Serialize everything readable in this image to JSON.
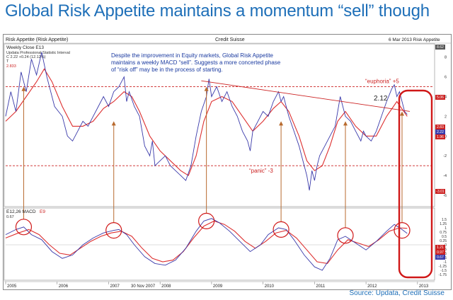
{
  "slide": {
    "title": "Global Risk Appetite maintains a momentum “sell” though",
    "source": "Source: Updata, Credit Suisse"
  },
  "chart_header": {
    "left": "Risk Appetite (Risk Appetite)",
    "center": "Credit Suisse",
    "right": "6 Mar 2013  Risk Appetite"
  },
  "colors": {
    "weekly_line": "#3a3aaa",
    "moving_average": "#dd3030",
    "threshold": "#cc2222",
    "annotation_arrow": "#b86a2e",
    "highlight_box": "#d01818",
    "title": "#1e6fb8"
  },
  "chart_data": [
    {
      "type": "line",
      "panel": "Risk Appetite weekly close",
      "legend_text": "Weekly Close  E13",
      "info_lines": [
        "Updata Professional  Statistic Interval",
        "C 2.22  +0.24 (12.12%)",
        "T"
      ],
      "info_value": "2.833",
      "annotation": "Despite the improvement in Equity markets, Global Risk Appetite maintains a weekly MACD “sell”.  Suggests a more concerted phase of “risk off” may be in the process of starting.",
      "x_range": [
        2005.0,
        2013.25
      ],
      "ylim": [
        -7,
        9.2
      ],
      "y_ticks": [
        8,
        6,
        4,
        2,
        0,
        -2,
        -4,
        -6
      ],
      "euphoria_level": 5,
      "euphoria_label": "“euphoria” +5",
      "panic_level": -3,
      "panic_label": "“panic” -3",
      "trendline_label": "2.12",
      "trendline": [
        [
          2008.8,
          5.6
        ],
        [
          2012.85,
          2.5
        ]
      ],
      "right_badges": [
        "8.62",
        "5.06",
        "2.83",
        "2.22",
        "1.96",
        "-3.01"
      ],
      "series": [
        {
          "name": "Weekly Close",
          "points": [
            [
              2005.0,
              2.0
            ],
            [
              2005.1,
              4.5
            ],
            [
              2005.2,
              2.5
            ],
            [
              2005.3,
              6.5
            ],
            [
              2005.4,
              4.5
            ],
            [
              2005.5,
              7.8
            ],
            [
              2005.6,
              6.2
            ],
            [
              2005.7,
              8.5
            ],
            [
              2005.8,
              6.0
            ],
            [
              2005.95,
              3.0
            ],
            [
              2006.1,
              2.0
            ],
            [
              2006.2,
              0.0
            ],
            [
              2006.3,
              -0.5
            ],
            [
              2006.4,
              0.5
            ],
            [
              2006.5,
              1.5
            ],
            [
              2006.6,
              1.0
            ],
            [
              2006.7,
              2.0
            ],
            [
              2006.8,
              3.0
            ],
            [
              2006.9,
              4.0
            ],
            [
              2007.0,
              3.0
            ],
            [
              2007.1,
              4.5
            ],
            [
              2007.2,
              5.0
            ],
            [
              2007.3,
              6.0
            ],
            [
              2007.35,
              3.5
            ],
            [
              2007.4,
              4.5
            ],
            [
              2007.5,
              3.0
            ],
            [
              2007.6,
              2.0
            ],
            [
              2007.7,
              -1.0
            ],
            [
              2007.8,
              -2.0
            ],
            [
              2007.85,
              -0.5
            ],
            [
              2007.9,
              -3.0
            ],
            [
              2008.0,
              -2.5
            ],
            [
              2008.1,
              -2.0
            ],
            [
              2008.2,
              -3.0
            ],
            [
              2008.3,
              -3.5
            ],
            [
              2008.4,
              -4.0
            ],
            [
              2008.5,
              -4.5
            ],
            [
              2008.6,
              -3.0
            ],
            [
              2008.7,
              0.0
            ],
            [
              2008.8,
              2.5
            ],
            [
              2008.9,
              4.0
            ],
            [
              2008.95,
              5.8
            ],
            [
              2009.0,
              4.0
            ],
            [
              2009.1,
              5.0
            ],
            [
              2009.2,
              3.5
            ],
            [
              2009.3,
              4.5
            ],
            [
              2009.4,
              3.0
            ],
            [
              2009.5,
              2.0
            ],
            [
              2009.6,
              0.5
            ],
            [
              2009.7,
              -0.5
            ],
            [
              2009.75,
              -1.5
            ],
            [
              2009.8,
              0.5
            ],
            [
              2009.9,
              1.5
            ],
            [
              2010.0,
              2.5
            ],
            [
              2010.1,
              2.0
            ],
            [
              2010.2,
              3.5
            ],
            [
              2010.3,
              4.5
            ],
            [
              2010.35,
              3.5
            ],
            [
              2010.4,
              4.0
            ],
            [
              2010.5,
              2.0
            ],
            [
              2010.6,
              0.5
            ],
            [
              2010.7,
              -1.0
            ],
            [
              2010.8,
              -3.0
            ],
            [
              2010.85,
              -4.0
            ],
            [
              2010.9,
              -5.5
            ],
            [
              2010.95,
              -3.5
            ],
            [
              2011.0,
              -4.5
            ],
            [
              2011.05,
              -3.0
            ],
            [
              2011.1,
              -2.0
            ],
            [
              2011.2,
              -1.0
            ],
            [
              2011.3,
              0.0
            ],
            [
              2011.4,
              1.0
            ],
            [
              2011.45,
              2.5
            ],
            [
              2011.5,
              4.0
            ],
            [
              2011.6,
              2.0
            ],
            [
              2011.7,
              1.5
            ],
            [
              2011.8,
              0.5
            ],
            [
              2011.9,
              -0.5
            ],
            [
              2011.95,
              0.5
            ],
            [
              2012.0,
              0.0
            ],
            [
              2012.1,
              -0.5
            ],
            [
              2012.2,
              0.5
            ],
            [
              2012.3,
              2.0
            ],
            [
              2012.4,
              3.5
            ],
            [
              2012.5,
              4.8
            ],
            [
              2012.55,
              5.2
            ],
            [
              2012.6,
              4.0
            ],
            [
              2012.65,
              4.5
            ],
            [
              2012.7,
              3.5
            ],
            [
              2012.75,
              2.5
            ],
            [
              2012.8,
              2.2
            ]
          ]
        },
        {
          "name": "E13",
          "points": [
            [
              2005.0,
              1.5
            ],
            [
              2005.2,
              2.5
            ],
            [
              2005.4,
              4.0
            ],
            [
              2005.6,
              5.5
            ],
            [
              2005.75,
              6.8
            ],
            [
              2005.9,
              5.5
            ],
            [
              2006.1,
              3.0
            ],
            [
              2006.3,
              1.0
            ],
            [
              2006.5,
              1.0
            ],
            [
              2006.7,
              1.5
            ],
            [
              2006.9,
              2.8
            ],
            [
              2007.1,
              3.5
            ],
            [
              2007.3,
              4.5
            ],
            [
              2007.45,
              4.0
            ],
            [
              2007.6,
              2.5
            ],
            [
              2007.8,
              0.0
            ],
            [
              2008.0,
              -1.5
            ],
            [
              2008.2,
              -2.5
            ],
            [
              2008.4,
              -3.5
            ],
            [
              2008.55,
              -4.0
            ],
            [
              2008.7,
              -2.0
            ],
            [
              2008.85,
              1.5
            ],
            [
              2009.0,
              3.5
            ],
            [
              2009.2,
              4.0
            ],
            [
              2009.4,
              3.5
            ],
            [
              2009.6,
              2.0
            ],
            [
              2009.8,
              0.5
            ],
            [
              2010.0,
              1.5
            ],
            [
              2010.2,
              2.8
            ],
            [
              2010.35,
              3.5
            ],
            [
              2010.5,
              2.5
            ],
            [
              2010.7,
              0.0
            ],
            [
              2010.85,
              -2.5
            ],
            [
              2011.0,
              -3.5
            ],
            [
              2011.15,
              -3.0
            ],
            [
              2011.3,
              -1.0
            ],
            [
              2011.45,
              1.5
            ],
            [
              2011.6,
              2.5
            ],
            [
              2011.8,
              1.0
            ],
            [
              2012.0,
              0.0
            ],
            [
              2012.2,
              0.0
            ],
            [
              2012.4,
              2.0
            ],
            [
              2012.6,
              3.5
            ],
            [
              2012.8,
              2.0
            ]
          ]
        }
      ]
    },
    {
      "type": "line",
      "panel": "MACD",
      "legend_text": "E12,26 MACD",
      "legend_signal": "E9",
      "info_value": "0.67",
      "ylim": [
        -2.0,
        2.0
      ],
      "y_ticks": [
        "1.5",
        "1.25",
        "1",
        "0.75",
        "0.5",
        "0.25",
        "0",
        "-0.25",
        "-0.5",
        "-0.75",
        "-1",
        "-1.25",
        "-1.5",
        "-1.75"
      ],
      "right_badges": [
        "1.21",
        "0.97",
        "0.67"
      ],
      "x_ticks": [
        "2005",
        "2006",
        "2007",
        "2008",
        "2009",
        "2010",
        "2011",
        "2012",
        "2013"
      ],
      "date_label": "30 Nov 2007",
      "series": [
        {
          "name": "MACD",
          "points": [
            [
              2005.0,
              0.6
            ],
            [
              2005.2,
              0.9
            ],
            [
              2005.35,
              1.05
            ],
            [
              2005.5,
              0.6
            ],
            [
              2005.7,
              0.3
            ],
            [
              2005.9,
              -0.4
            ],
            [
              2006.1,
              -0.8
            ],
            [
              2006.3,
              -0.6
            ],
            [
              2006.5,
              0.0
            ],
            [
              2006.7,
              0.4
            ],
            [
              2006.9,
              0.7
            ],
            [
              2007.1,
              0.85
            ],
            [
              2007.2,
              0.9
            ],
            [
              2007.35,
              0.6
            ],
            [
              2007.5,
              0.0
            ],
            [
              2007.7,
              -0.7
            ],
            [
              2007.9,
              -1.1
            ],
            [
              2008.1,
              -1.2
            ],
            [
              2008.3,
              -0.9
            ],
            [
              2008.5,
              -0.2
            ],
            [
              2008.7,
              0.8
            ],
            [
              2008.85,
              1.4
            ],
            [
              2009.0,
              1.55
            ],
            [
              2009.15,
              1.3
            ],
            [
              2009.35,
              0.8
            ],
            [
              2009.55,
              0.2
            ],
            [
              2009.75,
              -0.4
            ],
            [
              2009.95,
              0.0
            ],
            [
              2010.1,
              0.6
            ],
            [
              2010.3,
              1.0
            ],
            [
              2010.45,
              0.9
            ],
            [
              2010.6,
              0.3
            ],
            [
              2010.8,
              -0.6
            ],
            [
              2011.0,
              -1.3
            ],
            [
              2011.15,
              -1.5
            ],
            [
              2011.3,
              -0.8
            ],
            [
              2011.45,
              0.3
            ],
            [
              2011.6,
              0.5
            ],
            [
              2011.8,
              0.1
            ],
            [
              2012.0,
              -0.3
            ],
            [
              2012.2,
              0.2
            ],
            [
              2012.4,
              0.8
            ],
            [
              2012.55,
              1.2
            ],
            [
              2012.7,
              0.9
            ],
            [
              2012.8,
              0.67
            ]
          ]
        },
        {
          "name": "E9",
          "points": [
            [
              2005.0,
              0.4
            ],
            [
              2005.25,
              0.7
            ],
            [
              2005.45,
              0.9
            ],
            [
              2005.65,
              0.6
            ],
            [
              2005.85,
              0.0
            ],
            [
              2006.05,
              -0.5
            ],
            [
              2006.25,
              -0.6
            ],
            [
              2006.45,
              -0.2
            ],
            [
              2006.65,
              0.2
            ],
            [
              2006.85,
              0.5
            ],
            [
              2007.05,
              0.7
            ],
            [
              2007.25,
              0.8
            ],
            [
              2007.45,
              0.5
            ],
            [
              2007.65,
              -0.2
            ],
            [
              2007.85,
              -0.8
            ],
            [
              2008.05,
              -1.0
            ],
            [
              2008.25,
              -0.9
            ],
            [
              2008.45,
              -0.4
            ],
            [
              2008.65,
              0.4
            ],
            [
              2008.85,
              1.1
            ],
            [
              2009.05,
              1.4
            ],
            [
              2009.25,
              1.2
            ],
            [
              2009.45,
              0.8
            ],
            [
              2009.65,
              0.2
            ],
            [
              2009.85,
              -0.2
            ],
            [
              2010.05,
              0.2
            ],
            [
              2010.25,
              0.7
            ],
            [
              2010.45,
              0.85
            ],
            [
              2010.65,
              0.4
            ],
            [
              2010.85,
              -0.3
            ],
            [
              2011.05,
              -1.0
            ],
            [
              2011.25,
              -1.1
            ],
            [
              2011.45,
              -0.3
            ],
            [
              2011.65,
              0.3
            ],
            [
              2011.85,
              0.1
            ],
            [
              2012.05,
              -0.1
            ],
            [
              2012.25,
              0.3
            ],
            [
              2012.45,
              0.8
            ],
            [
              2012.65,
              1.0
            ],
            [
              2012.8,
              0.97
            ]
          ]
        }
      ]
    }
  ],
  "signal_markers": [
    {
      "x": 2005.35,
      "y": 5.0,
      "macd": 1.05
    },
    {
      "x": 2007.1,
      "y": 1.5,
      "macd": 0.85
    },
    {
      "x": 2008.9,
      "y": 5.0,
      "macd": 1.4
    },
    {
      "x": 2010.35,
      "y": 1.5,
      "macd": 0.9
    },
    {
      "x": 2011.6,
      "y": 1.5,
      "macd": 0.55
    },
    {
      "x": 2012.7,
      "y": 2.5,
      "macd": 0.85
    }
  ]
}
